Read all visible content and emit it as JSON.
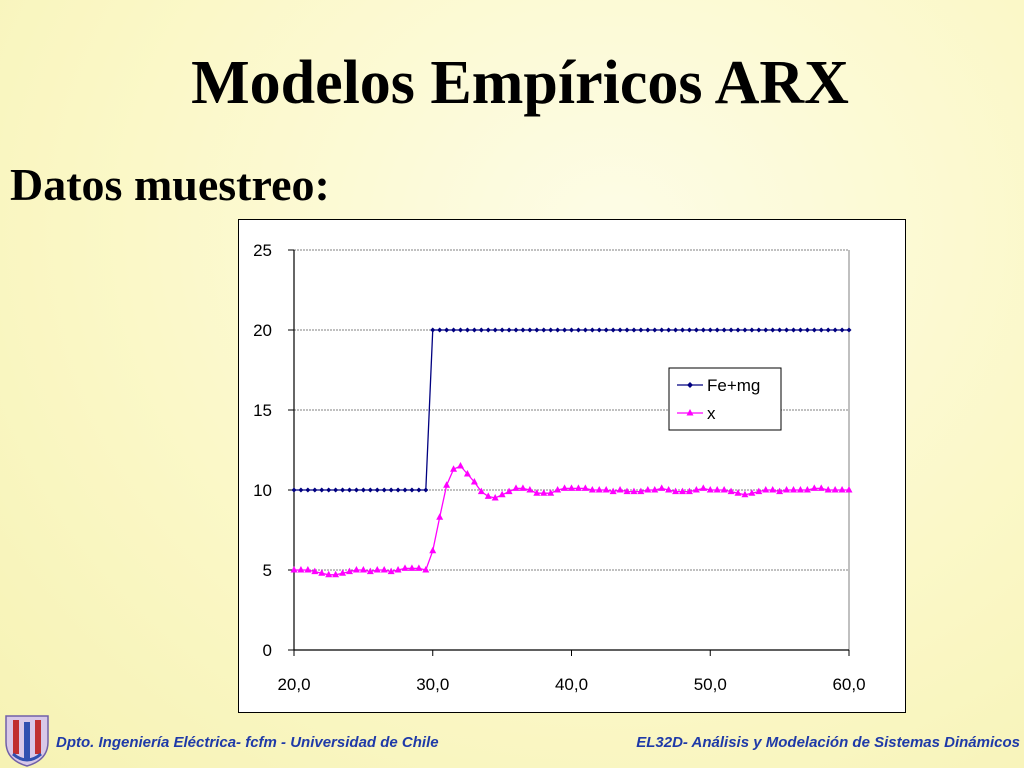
{
  "slide": {
    "title": "Modelos Empíricos ARX",
    "subtitle": "Datos muestreo:"
  },
  "footer": {
    "left": "Dpto.  Ingeniería Eléctrica- fcfm - Universidad de Chile",
    "right": "EL32D- Análisis y Modelación de Sistemas Dinámicos"
  },
  "colors": {
    "fe_mg": "#000080",
    "x": "#ff00ff",
    "footer_text": "#1f3aa8"
  },
  "chart_data": {
    "type": "line",
    "title": "",
    "xlabel": "",
    "ylabel": "",
    "xlim": [
      20,
      60
    ],
    "ylim": [
      0,
      25
    ],
    "x_ticks": [
      20,
      30,
      40,
      50,
      60
    ],
    "x_tick_labels": [
      "20,0",
      "30,0",
      "40,0",
      "50,0",
      "60,0"
    ],
    "y_ticks": [
      0,
      5,
      10,
      15,
      20,
      25
    ],
    "y_tick_labels": [
      "0",
      "5",
      "10",
      "15",
      "20",
      "25"
    ],
    "grid": "horizontal",
    "legend": "right",
    "series": [
      {
        "name": "Fe+mg",
        "marker": "diamond",
        "x_start": 20.0,
        "x_step": 0.5,
        "values": [
          10,
          10,
          10,
          10,
          10,
          10,
          10,
          10,
          10,
          10,
          10,
          10,
          10,
          10,
          10,
          10,
          10,
          10,
          10,
          10,
          20,
          20,
          20,
          20,
          20,
          20,
          20,
          20,
          20,
          20,
          20,
          20,
          20,
          20,
          20,
          20,
          20,
          20,
          20,
          20,
          20,
          20,
          20,
          20,
          20,
          20,
          20,
          20,
          20,
          20,
          20,
          20,
          20,
          20,
          20,
          20,
          20,
          20,
          20,
          20,
          20,
          20,
          20,
          20,
          20,
          20,
          20,
          20,
          20,
          20,
          20,
          20,
          20,
          20,
          20,
          20,
          20,
          20,
          20,
          20,
          20
        ]
      },
      {
        "name": "x",
        "marker": "triangle",
        "x_start": 20.0,
        "x_step": 0.5,
        "values": [
          5.0,
          5.0,
          5.0,
          4.9,
          4.8,
          4.7,
          4.7,
          4.8,
          4.9,
          5.0,
          5.0,
          4.9,
          5.0,
          5.0,
          4.9,
          5.0,
          5.1,
          5.1,
          5.1,
          5.0,
          6.2,
          8.3,
          10.3,
          11.3,
          11.5,
          11.0,
          10.5,
          9.9,
          9.6,
          9.5,
          9.7,
          9.9,
          10.1,
          10.1,
          10.0,
          9.8,
          9.8,
          9.8,
          10.0,
          10.1,
          10.1,
          10.1,
          10.1,
          10.0,
          10.0,
          10.0,
          9.9,
          10.0,
          9.9,
          9.9,
          9.9,
          10.0,
          10.0,
          10.1,
          10.0,
          9.9,
          9.9,
          9.9,
          10.0,
          10.1,
          10.0,
          10.0,
          10.0,
          9.9,
          9.8,
          9.7,
          9.8,
          9.9,
          10.0,
          10.0,
          9.9,
          10.0,
          10.0,
          10.0,
          10.0,
          10.1,
          10.1,
          10.0,
          10.0,
          10.0,
          10.0
        ]
      }
    ]
  }
}
